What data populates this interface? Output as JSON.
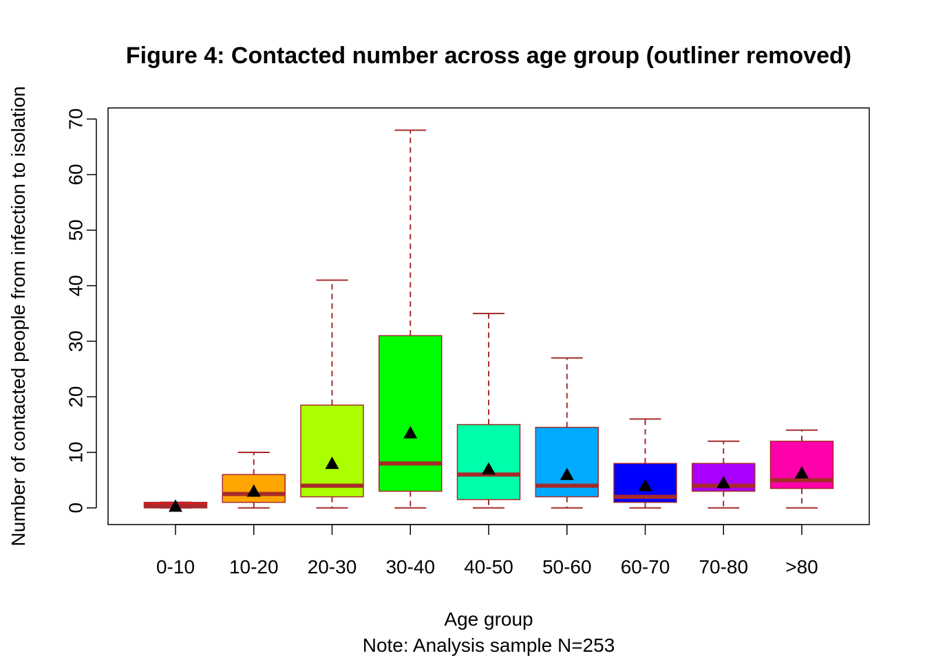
{
  "chart_data": {
    "type": "boxplot",
    "title": "Figure 4: Contacted number across age group (outliner removed)",
    "xlabel": "Age group",
    "note": "Note: Analysis sample N=253",
    "ylabel": "Number of contacted people from infection to isolation",
    "ylim": [
      -3,
      72
    ],
    "yticks": [
      "0",
      "10",
      "20",
      "30",
      "40",
      "50",
      "60",
      "70"
    ],
    "ytick_values": [
      0,
      10,
      20,
      30,
      40,
      50,
      60,
      70
    ],
    "grid": false,
    "whisker_color": "#A52A2A",
    "median_color": "#A52A2A",
    "mean_marker": "triangle",
    "mean_color": "#000000",
    "categories": [
      "0-10",
      "10-20",
      "20-30",
      "30-40",
      "40-50",
      "50-60",
      "60-70",
      "70-80",
      ">80"
    ],
    "boxes": [
      {
        "category": "0-10",
        "min": 0,
        "q1": 0,
        "median": 0.3,
        "q3": 1,
        "max": 1,
        "mean": 0.3,
        "color": "#E41A1C"
      },
      {
        "category": "10-20",
        "min": 0,
        "q1": 1,
        "median": 2.5,
        "q3": 6,
        "max": 10,
        "mean": 3.0,
        "color": "#FFA500"
      },
      {
        "category": "20-30",
        "min": 0,
        "q1": 2,
        "median": 4,
        "q3": 18.5,
        "max": 41,
        "mean": 8.0,
        "color": "#AAFF00"
      },
      {
        "category": "30-40",
        "min": 0,
        "q1": 3,
        "median": 8,
        "q3": 31,
        "max": 68,
        "mean": 13.5,
        "color": "#00FF00"
      },
      {
        "category": "40-50",
        "min": 0,
        "q1": 1.5,
        "median": 6,
        "q3": 15,
        "max": 35,
        "mean": 7.0,
        "color": "#00FFAA"
      },
      {
        "category": "50-60",
        "min": 0,
        "q1": 2,
        "median": 4,
        "q3": 14.5,
        "max": 27,
        "mean": 6.0,
        "color": "#00AAFF"
      },
      {
        "category": "60-70",
        "min": 0,
        "q1": 1,
        "median": 2,
        "q3": 8,
        "max": 16,
        "mean": 4.0,
        "color": "#0000FF"
      },
      {
        "category": "70-80",
        "min": 0,
        "q1": 3,
        "median": 4,
        "q3": 8,
        "max": 12,
        "mean": 4.5,
        "color": "#AA00FF"
      },
      {
        "category": ">80",
        "min": 0,
        "q1": 3.5,
        "median": 5,
        "q3": 12,
        "max": 14,
        "mean": 6.3,
        "color": "#FF00AA"
      }
    ]
  }
}
